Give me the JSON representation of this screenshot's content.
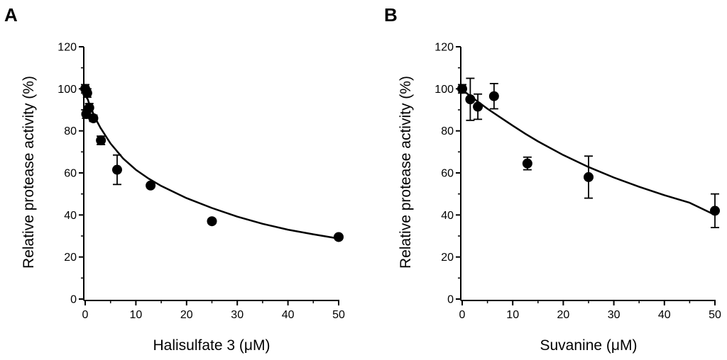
{
  "figure": {
    "panels": [
      {
        "letter": "A"
      },
      {
        "letter": "B"
      }
    ]
  },
  "chart_data": [
    {
      "type": "scatter",
      "panel": "A",
      "title": "",
      "xlabel": "Halisulfate 3 (μM)",
      "ylabel": "Relative protease activity (%)",
      "xlim": [
        0,
        50
      ],
      "ylim": [
        0,
        120
      ],
      "xticks": [
        0,
        10,
        20,
        30,
        40,
        50
      ],
      "yticks": [
        0,
        20,
        40,
        60,
        80,
        100,
        120
      ],
      "grid": false,
      "legend": "none",
      "points": [
        {
          "x": 0,
          "y": 100,
          "err": 2
        },
        {
          "x": 0.2,
          "y": 88,
          "err": 2
        },
        {
          "x": 0.4,
          "y": 98,
          "err": 2
        },
        {
          "x": 0.8,
          "y": 91,
          "err": 2
        },
        {
          "x": 1.6,
          "y": 86,
          "err": 1.5
        },
        {
          "x": 3.1,
          "y": 75.5,
          "err": 2
        },
        {
          "x": 6.3,
          "y": 61.5,
          "err": 7
        },
        {
          "x": 12.9,
          "y": 54,
          "err": 1
        },
        {
          "x": 25,
          "y": 37,
          "err": 1
        },
        {
          "x": 50,
          "y": 29.5,
          "err": 1
        }
      ],
      "fit_curve": {
        "x": [
          0,
          0.5,
          1,
          2,
          3,
          5,
          7.5,
          10,
          12.5,
          15,
          20,
          25,
          30,
          35,
          40,
          45,
          50
        ],
        "y": [
          97,
          95,
          91.5,
          86,
          81.5,
          74,
          66.8,
          61.5,
          57.3,
          53.8,
          48,
          43.3,
          39.2,
          35.8,
          33,
          30.8,
          28.8
        ]
      }
    },
    {
      "type": "scatter",
      "panel": "B",
      "title": "",
      "xlabel": "Suvanine (μM)",
      "ylabel": "Relative protease activity (%)",
      "xlim": [
        0,
        50
      ],
      "ylim": [
        0,
        120
      ],
      "xticks": [
        0,
        10,
        20,
        30,
        40,
        50
      ],
      "yticks": [
        0,
        20,
        40,
        60,
        80,
        100,
        120
      ],
      "grid": false,
      "legend": "none",
      "points": [
        {
          "x": 0,
          "y": 100,
          "err": 2
        },
        {
          "x": 1.6,
          "y": 95,
          "err": 10
        },
        {
          "x": 3.1,
          "y": 91.5,
          "err": 6
        },
        {
          "x": 6.3,
          "y": 96.5,
          "err": 6
        },
        {
          "x": 12.9,
          "y": 64.5,
          "err": 3
        },
        {
          "x": 25,
          "y": 58,
          "err": 10
        },
        {
          "x": 50,
          "y": 42,
          "err": 8
        }
      ],
      "fit_curve": {
        "x": [
          0,
          2.5,
          5,
          7.5,
          10,
          12.5,
          15,
          20,
          25,
          30,
          35,
          40,
          45,
          50
        ],
        "y": [
          99.5,
          95,
          90.5,
          86.5,
          82.5,
          78.6,
          75,
          68.5,
          62.8,
          57.8,
          53.4,
          49.4,
          45.8,
          40
        ]
      }
    }
  ]
}
